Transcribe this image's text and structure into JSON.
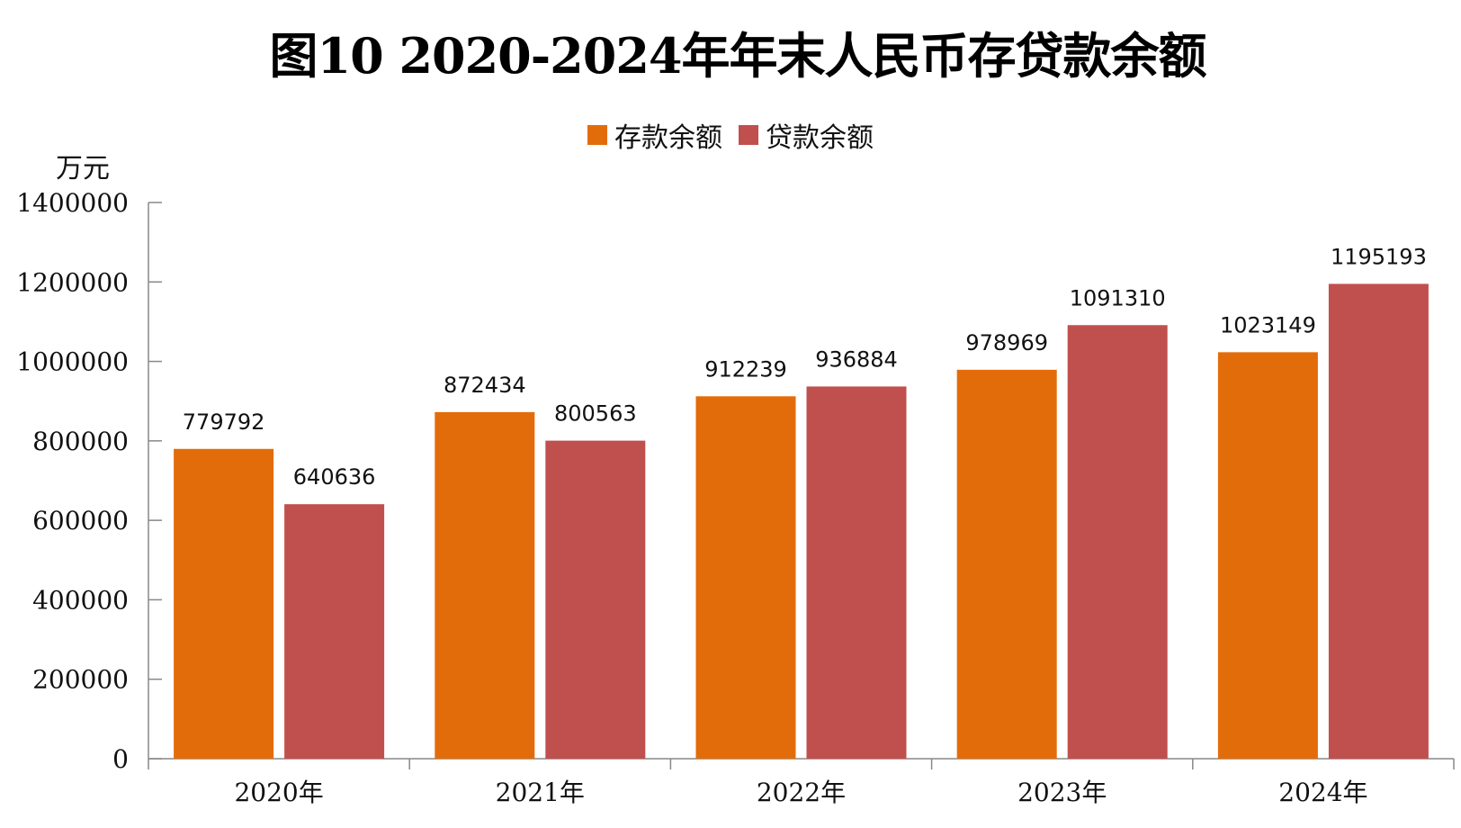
{
  "chart_data": {
    "type": "bar",
    "title": "图10  2020-2024年年末人民币存贷款余额",
    "ylabel": "万元",
    "xlabel": "",
    "categories": [
      "2020年",
      "2021年",
      "2022年",
      "2023年",
      "2024年"
    ],
    "series": [
      {
        "name": "存款余额",
        "color": "#E36C0A",
        "values": [
          779792,
          872434,
          912239,
          978969,
          1023149
        ]
      },
      {
        "name": "贷款余额",
        "color": "#C0504D",
        "values": [
          640636,
          800563,
          936884,
          1091310,
          1195193
        ]
      }
    ],
    "ylim": [
      0,
      1400000
    ],
    "yticks": [
      0,
      200000,
      400000,
      600000,
      800000,
      1000000,
      1200000,
      1400000
    ],
    "grid": false,
    "legend_position": "top-center"
  }
}
